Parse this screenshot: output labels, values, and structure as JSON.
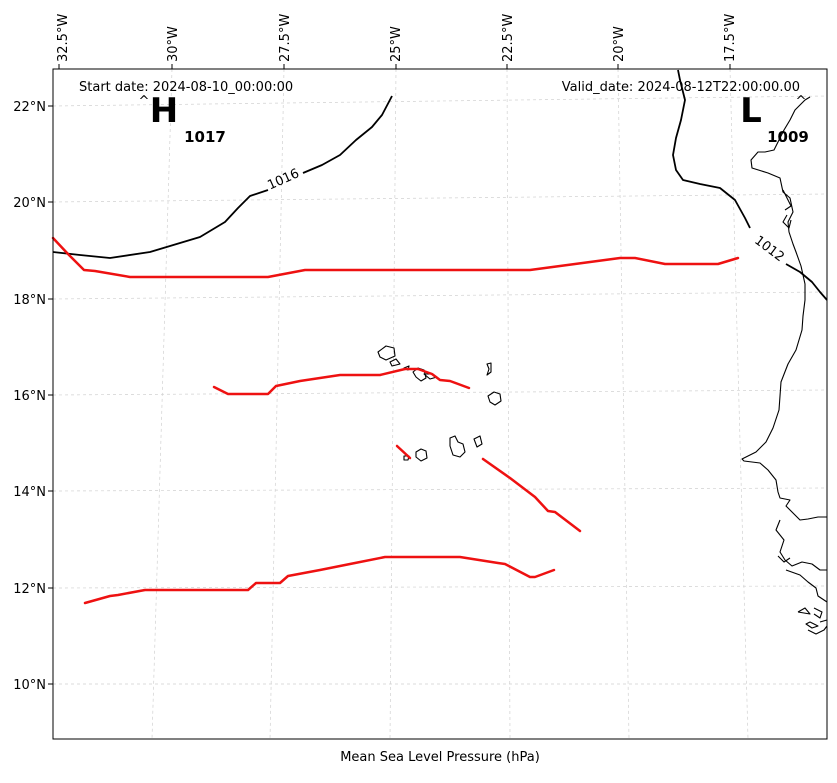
{
  "map": {
    "start_date_label": "Start date: 2024-08-10_00:00:00",
    "valid_date_label": "Valid_date: 2024-08-12T22:00:00.00",
    "xlabel": "Mean Sea Level Pressure (hPa)",
    "lon_ticks": [
      "32.5°W",
      "30°W",
      "27.5°W",
      "25°W",
      "22.5°W",
      "20°W",
      "17.5°W"
    ],
    "lat_ticks": [
      "22°N",
      "20°N",
      "18°N",
      "16°N",
      "14°N",
      "12°N",
      "10°N"
    ],
    "high_center": {
      "symbol": "H",
      "value": "1017"
    },
    "low_center": {
      "symbol": "L",
      "value": "1009"
    },
    "isobar_labels": [
      "1016",
      "1012"
    ],
    "colors": {
      "isobar": "#000000",
      "trough_line": "#ee1111",
      "coastline": "#000000",
      "grid": "#cccccc"
    }
  }
}
